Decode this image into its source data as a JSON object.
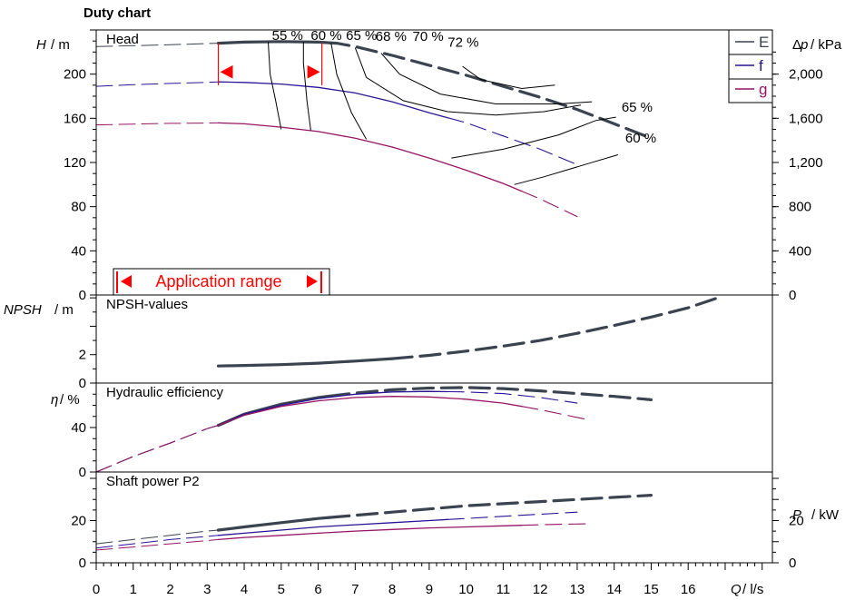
{
  "title": "Duty chart",
  "colors": {
    "E": "#3b4350",
    "f": "#2a1496",
    "g": "#961464",
    "annotation": "#ff0000",
    "axis": "#000000"
  },
  "chart_data": {
    "type": "line",
    "title": "Duty chart",
    "x_axis": {
      "label": "Q / l/s",
      "range": [
        0,
        17
      ],
      "ticks": [
        "0",
        "1",
        "2",
        "3",
        "4",
        "5",
        "6",
        "7",
        "8",
        "9",
        "10",
        "11",
        "12",
        "13",
        "14",
        "15",
        "16"
      ]
    },
    "legend": {
      "position": "top-right",
      "entries": [
        "E",
        "f",
        "g"
      ]
    },
    "application_range": {
      "label": "Application range",
      "from": 3.3,
      "to": 6.1
    },
    "panels": [
      {
        "name": "head",
        "title": "Head",
        "y_label": "H / m",
        "y_range": [
          0,
          240
        ],
        "y_ticks": [
          "0",
          "40",
          "80",
          "120",
          "160",
          "200"
        ],
        "y2_label": "Δp / kPa",
        "y2_ticks": [
          "0",
          "400",
          "800",
          "1,200",
          "1,600",
          "2,000"
        ],
        "series": [
          {
            "name": "E",
            "x": [
              0,
              1,
              2,
              3,
              3.3,
              4,
              5,
              6,
              6.5,
              7,
              8,
              9,
              10,
              11,
              12,
              13,
              14,
              15
            ],
            "y": [
              225,
              225.8,
              226.6,
              227.7,
              228,
              229,
              229.5,
              229,
              228,
              225,
              217,
              208,
              199,
              189,
              179,
              168,
              155,
              142
            ],
            "op_from": 3.3,
            "op_to": 6.3
          },
          {
            "name": "f",
            "x": [
              0,
              1,
              2,
              3,
              3.3,
              4,
              5,
              6,
              7,
              8,
              9,
              10,
              11,
              12,
              13
            ],
            "y": [
              189,
              190.4,
              191.6,
              192.6,
              193,
              192.5,
              191,
              188,
              183,
              175,
              165,
              156,
              144,
              132,
              118
            ],
            "op_from": 3.3,
            "op_to": 9.5
          },
          {
            "name": "g",
            "x": [
              0,
              1,
              2,
              3,
              3.3,
              4,
              5,
              6,
              7,
              8,
              9,
              10,
              11,
              12,
              13
            ],
            "y": [
              154,
              154.8,
              155.4,
              155.7,
              155.8,
              155,
              152,
              148,
              142,
              134,
              124,
              113,
              101,
              87,
              71
            ],
            "op_from": 3.3,
            "op_to": 11.5
          }
        ],
        "efficiency_labels": [
          "55 %",
          "60 %",
          "65 %",
          "68 %",
          "70 %",
          "72 %",
          "65 %",
          "60 %"
        ]
      },
      {
        "name": "npsh",
        "title": "NPSH-values",
        "y_label": "NPSH / m",
        "y_range": [
          0,
          6.2
        ],
        "y_ticks": [
          "0",
          "2"
        ],
        "series": [
          {
            "name": "E",
            "x": [
              3.3,
              4,
              5,
              6,
              7,
              8,
              9,
              10,
              11,
              12,
              13,
              14,
              15,
              16,
              16.8
            ],
            "y": [
              1.2,
              1.24,
              1.3,
              1.4,
              1.55,
              1.72,
              1.95,
              2.25,
              2.6,
              3.0,
              3.5,
              4.05,
              4.65,
              5.3,
              6.0
            ],
            "op_from": 3.3,
            "op_to": 8
          }
        ]
      },
      {
        "name": "efficiency",
        "title": "Hydraulic efficiency",
        "y_label": "η / %",
        "y_range": [
          0,
          80
        ],
        "y_ticks": [
          "0",
          "40"
        ],
        "series": [
          {
            "name": "E",
            "x": [
              0,
              1,
              2,
              3,
              3.3,
              4,
              5,
              6,
              7,
              8,
              9,
              10,
              11,
              12,
              13,
              14,
              15
            ],
            "y": [
              0,
              14,
              26,
              39,
              42,
              52,
              61,
              67,
              71,
              74,
              75.5,
              76,
              75,
              73,
              70.5,
              68,
              65
            ],
            "op_from": 3.3,
            "op_to": 6.3
          },
          {
            "name": "f",
            "x": [
              0,
              1,
              2,
              3,
              3.3,
              4,
              5,
              6,
              7,
              8,
              9,
              10,
              11,
              12,
              13
            ],
            "y": [
              0,
              14,
              26,
              39,
              42,
              52,
              60,
              66,
              70,
              72,
              72.5,
              72,
              70.5,
              67,
              62
            ],
            "op_from": 3.3,
            "op_to": 9.5
          },
          {
            "name": "g",
            "x": [
              0,
              1,
              2,
              3,
              3.3,
              4,
              5,
              6,
              7,
              8,
              9,
              10,
              11,
              12,
              13.3
            ],
            "y": [
              0,
              14,
              26,
              39,
              42,
              51,
              59,
              64,
              67,
              68,
              67.5,
              65.5,
              62,
              56,
              47
            ],
            "op_from": 3.3,
            "op_to": 11.5
          }
        ]
      },
      {
        "name": "power",
        "title": "Shaft power P2",
        "y_label": "P / kW",
        "y_range": [
          0,
          43
        ],
        "y_ticks": [
          "0",
          "20"
        ],
        "series": [
          {
            "name": "E",
            "x": [
              0,
              1,
              2,
              3,
              3.3,
              4,
              5,
              6,
              7,
              8,
              9,
              10,
              11,
              12,
              13,
              14,
              15
            ],
            "y": [
              9,
              11,
              13,
              15,
              15.5,
              17,
              19,
              21,
              22.5,
              24,
              25.5,
              27,
              28,
              29,
              30,
              31,
              32
            ],
            "op_from": 3.3,
            "op_to": 6.3
          },
          {
            "name": "f",
            "x": [
              0,
              1,
              2,
              3,
              3.3,
              4,
              5,
              6,
              7,
              8,
              9,
              10,
              11,
              12,
              13
            ],
            "y": [
              7,
              9,
              11,
              12.5,
              13,
              14,
              15.5,
              17,
              18,
              19,
              20,
              21,
              22,
              23,
              24
            ],
            "op_from": 3.3,
            "op_to": 9.5
          },
          {
            "name": "g",
            "x": [
              0,
              1,
              2,
              3,
              3.3,
              4,
              5,
              6,
              7,
              8,
              9,
              10,
              11,
              12,
              13.3
            ],
            "y": [
              6,
              7.5,
              9,
              10.5,
              11,
              12,
              13,
              14,
              15,
              15.8,
              16.5,
              17,
              17.5,
              18,
              18.5
            ],
            "op_from": 3.3,
            "op_to": 11.5
          }
        ]
      }
    ]
  }
}
